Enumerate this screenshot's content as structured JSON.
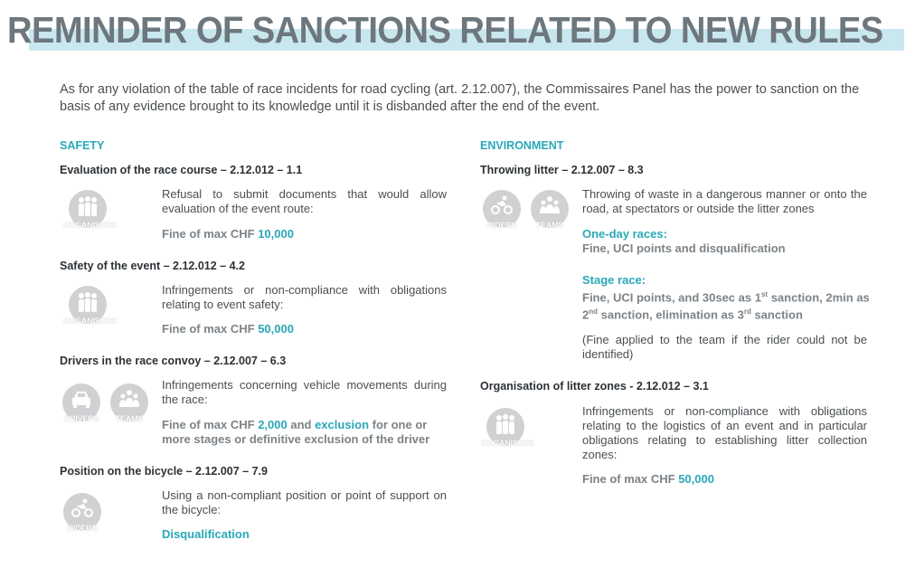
{
  "title": "REMINDER OF SANCTIONS RELATED TO NEW RULES",
  "intro": "As for any violation of the table of race incidents for road cycling (art. 2.12.007), the Commissaires Panel has the power to sanction on the basis of any evidence brought to its knowledge until it is disbanded after the end of the event.",
  "colors": {
    "accent": "#2aa8b8",
    "title": "#6d777d",
    "title_band": "#c9e7ef",
    "icon": "#cfd1d3"
  },
  "safety": {
    "label": "SAFETY",
    "items": [
      {
        "heading": "Evaluation of the race course – 2.12.012 – 1.1",
        "icons": [
          "ORGANISERS"
        ],
        "text": "Refusal to submit documents that would allow evaluation of the event route:",
        "fine_prefix": "Fine of max CHF ",
        "fine_value": "10,000"
      },
      {
        "heading": "Safety of the event – 2.12.012 – 4.2",
        "icons": [
          "ORGANISERS"
        ],
        "text": "Infringements or non-compliance with obligations relating to event safety:",
        "fine_prefix": "Fine of max CHF ",
        "fine_value": "50,000"
      },
      {
        "heading": "Drivers in the race convoy – 2.12.007 – 6.3",
        "icons": [
          "DRIVERS",
          "TEAMS"
        ],
        "text": "Infringements concerning vehicle movements during the race:",
        "fine_prefix": "Fine of max CHF ",
        "fine_value": "2,000",
        "fine_mid": " and ",
        "fine_value2": "exclusion",
        "fine_suffix": " for one or more stages or definitive exclusion of the driver"
      },
      {
        "heading": "Position on the bicycle – 2.12.007 – 7.9",
        "icons": [
          "RIDERS"
        ],
        "text": "Using a non-compliant position or point of support on the bicycle:",
        "sanction": "Disqualification"
      }
    ]
  },
  "environment": {
    "label": "ENVIRONMENT",
    "items": [
      {
        "heading": "Throwing litter – 2.12.007 – 8.3",
        "icons": [
          "RIDERS",
          "TEAMS"
        ],
        "text": "Throwing of waste in a dangerous manner or onto the road, at spectators or outside the litter zones",
        "one_day_label": "One-day races:",
        "one_day_text": "Fine, UCI points and disqualification",
        "stage_label": "Stage race:",
        "stage_text_1": "Fine, UCI points, and 30sec as 1",
        "stage_sup_1": "st",
        "stage_text_2": " sanction, 2min as 2",
        "stage_sup_2": "nd",
        "stage_text_3": " sanction, elimination as 3",
        "stage_sup_3": "rd",
        "stage_text_4": " sanction",
        "note": "(Fine applied to the team if the rider could not be identified)"
      },
      {
        "heading": "Organisation of litter zones - 2.12.012 – 3.1",
        "icons": [
          "ORGANISERS"
        ],
        "text": "Infringements or non-compliance with obligations relating to the logistics of an event and in particular obligations relating to establishing litter collection zones:",
        "fine_prefix": "Fine of max CHF ",
        "fine_value": "50,000"
      }
    ]
  }
}
